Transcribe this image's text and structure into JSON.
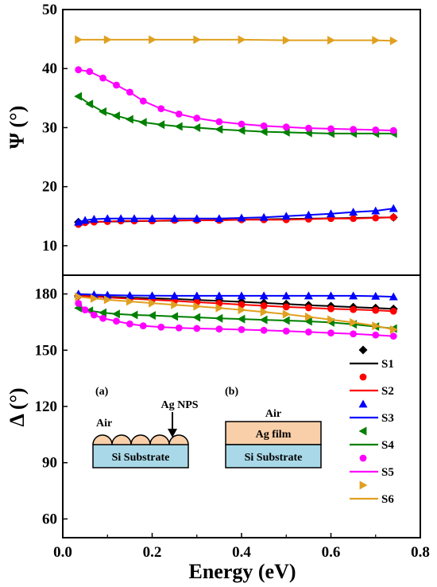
{
  "chart_data": {
    "type": "scatter",
    "x_axis": {
      "label": "Energy (eV)",
      "range": [
        0.0,
        0.8
      ],
      "ticks": [
        "0.0",
        "0.2",
        "0.4",
        "0.6",
        "0.8"
      ]
    },
    "panels": [
      {
        "ylabel": "Ψ (°)",
        "ylim": [
          5,
          50
        ],
        "yticks": [
          "10",
          "20",
          "30",
          "40",
          "50"
        ],
        "series": [
          {
            "color": "#000000",
            "marker": "diamond",
            "x": [
              0.035,
              0.74
            ],
            "y": [
              14.0,
              14.8
            ]
          },
          {
            "color": "#ff0000",
            "marker": "circle",
            "x": [
              0.035,
              0.05,
              0.07,
              0.1,
              0.13,
              0.16,
              0.2,
              0.25,
              0.3,
              0.35,
              0.4,
              0.45,
              0.5,
              0.55,
              0.6,
              0.65,
              0.7,
              0.74
            ],
            "y": [
              13.6,
              13.9,
              14.0,
              14.1,
              14.2,
              14.2,
              14.2,
              14.3,
              14.3,
              14.3,
              14.4,
              14.4,
              14.4,
              14.5,
              14.6,
              14.6,
              14.7,
              14.8
            ]
          },
          {
            "color": "#0000ff",
            "marker": "triangle-up",
            "x": [
              0.035,
              0.05,
              0.07,
              0.1,
              0.13,
              0.16,
              0.2,
              0.25,
              0.3,
              0.35,
              0.4,
              0.45,
              0.5,
              0.55,
              0.6,
              0.65,
              0.7,
              0.74
            ],
            "y": [
              14.0,
              14.3,
              14.5,
              14.6,
              14.6,
              14.6,
              14.6,
              14.6,
              14.6,
              14.6,
              14.7,
              14.8,
              15.0,
              15.2,
              15.4,
              15.7,
              15.9,
              16.3
            ]
          },
          {
            "color": "#008000",
            "marker": "triangle-left",
            "x": [
              0.035,
              0.06,
              0.09,
              0.12,
              0.15,
              0.18,
              0.22,
              0.26,
              0.3,
              0.35,
              0.4,
              0.45,
              0.5,
              0.55,
              0.6,
              0.65,
              0.7,
              0.74
            ],
            "y": [
              35.3,
              34.0,
              32.7,
              32.0,
              31.4,
              30.9,
              30.5,
              30.2,
              30.0,
              29.7,
              29.5,
              29.3,
              29.2,
              29.1,
              29.0,
              29.0,
              29.0,
              29.0
            ]
          },
          {
            "color": "#ff00ff",
            "marker": "circle",
            "x": [
              0.035,
              0.06,
              0.09,
              0.12,
              0.15,
              0.18,
              0.22,
              0.26,
              0.3,
              0.35,
              0.4,
              0.45,
              0.5,
              0.55,
              0.6,
              0.65,
              0.7,
              0.74
            ],
            "y": [
              39.8,
              39.5,
              38.4,
              37.2,
              36.0,
              34.5,
              33.2,
              32.3,
              31.6,
              31.0,
              30.6,
              30.3,
              30.1,
              29.9,
              29.8,
              29.7,
              29.6,
              29.5
            ]
          },
          {
            "color": "#e0a020",
            "marker": "triangle-right",
            "x": [
              0.035,
              0.1,
              0.2,
              0.3,
              0.4,
              0.5,
              0.6,
              0.7,
              0.74
            ],
            "y": [
              44.9,
              44.9,
              44.9,
              44.9,
              44.9,
              44.8,
              44.8,
              44.8,
              44.7
            ]
          }
        ]
      },
      {
        "ylabel": "Δ (°)",
        "ylim": [
          50,
          190
        ],
        "yticks": [
          "60",
          "90",
          "120",
          "150",
          "180"
        ],
        "series": [
          {
            "color": "#000000",
            "marker": "diamond",
            "x": [
              0.035,
              0.07,
              0.1,
              0.15,
              0.2,
              0.25,
              0.3,
              0.35,
              0.4,
              0.45,
              0.5,
              0.55,
              0.6,
              0.65,
              0.7,
              0.74
            ],
            "y": [
              179.0,
              178.8,
              178.5,
              178.0,
              177.7,
              177.3,
              176.8,
              176.3,
              175.8,
              175.2,
              174.6,
              174.0,
              173.5,
              173.0,
              172.5,
              172.0
            ]
          },
          {
            "color": "#ff0000",
            "marker": "circle",
            "x": [
              0.035,
              0.07,
              0.1,
              0.15,
              0.2,
              0.25,
              0.3,
              0.35,
              0.4,
              0.45,
              0.5,
              0.55,
              0.6,
              0.65,
              0.7,
              0.74
            ],
            "y": [
              179.0,
              178.6,
              178.1,
              177.5,
              176.9,
              176.3,
              175.6,
              175.0,
              174.3,
              173.7,
              173.1,
              172.6,
              172.1,
              171.7,
              171.3,
              170.8
            ]
          },
          {
            "color": "#0000ff",
            "marker": "triangle-up",
            "x": [
              0.035,
              0.07,
              0.1,
              0.15,
              0.2,
              0.25,
              0.3,
              0.35,
              0.4,
              0.45,
              0.5,
              0.55,
              0.6,
              0.65,
              0.7,
              0.74
            ],
            "y": [
              180.0,
              179.6,
              179.4,
              179.2,
              179.1,
              179.0,
              179.0,
              179.0,
              179.0,
              179.0,
              179.0,
              179.0,
              179.0,
              179.0,
              178.8,
              178.5
            ]
          },
          {
            "color": "#008000",
            "marker": "triangle-left",
            "x": [
              0.035,
              0.06,
              0.09,
              0.12,
              0.16,
              0.2,
              0.25,
              0.3,
              0.35,
              0.4,
              0.45,
              0.5,
              0.55,
              0.6,
              0.65,
              0.7,
              0.74
            ],
            "y": [
              172.5,
              171.0,
              170.0,
              169.3,
              168.8,
              168.5,
              168.0,
              167.5,
              167.0,
              166.6,
              166.2,
              165.8,
              165.4,
              164.8,
              163.8,
              162.6,
              161.5
            ]
          },
          {
            "color": "#ff00ff",
            "marker": "circle",
            "x": [
              0.035,
              0.05,
              0.07,
              0.09,
              0.12,
              0.15,
              0.18,
              0.22,
              0.26,
              0.3,
              0.35,
              0.4,
              0.45,
              0.5,
              0.55,
              0.6,
              0.65,
              0.7,
              0.74
            ],
            "y": [
              175.0,
              171.5,
              168.8,
              167.0,
              165.5,
              164.0,
              163.0,
              162.3,
              161.9,
              161.6,
              161.3,
              161.0,
              160.6,
              160.2,
              159.7,
              159.2,
              158.7,
              158.1,
              157.5
            ]
          },
          {
            "color": "#e0a020",
            "marker": "triangle-right",
            "x": [
              0.035,
              0.07,
              0.1,
              0.15,
              0.2,
              0.25,
              0.3,
              0.35,
              0.4,
              0.45,
              0.5,
              0.55,
              0.6,
              0.65,
              0.7,
              0.74
            ],
            "y": [
              178.5,
              177.6,
              176.9,
              176.0,
              175.1,
              174.2,
              173.4,
              172.5,
              171.5,
              170.4,
              169.2,
              167.8,
              166.3,
              164.8,
              163.0,
              161.0
            ]
          }
        ],
        "legend": {
          "placement": "right",
          "entries": [
            {
              "series": 0,
              "label": "S1"
            },
            {
              "series": 1,
              "label": "S2"
            },
            {
              "series": 2,
              "label": "S3"
            },
            {
              "series": 3,
              "label": "S4"
            },
            {
              "series": 4,
              "label": "S5"
            },
            {
              "series": 5,
              "label": "S6"
            }
          ]
        }
      }
    ],
    "insets": {
      "a": {
        "tag": "(a)",
        "air": "Air",
        "particles": "Ag NPS",
        "substrate": "Si Substrate"
      },
      "b": {
        "tag": "(b)",
        "air": "Air",
        "film": "Ag  film",
        "substrate": "Si Substrate"
      },
      "colors": {
        "substrate": "#a9d9e8",
        "film": "#f8cfa8"
      }
    }
  }
}
